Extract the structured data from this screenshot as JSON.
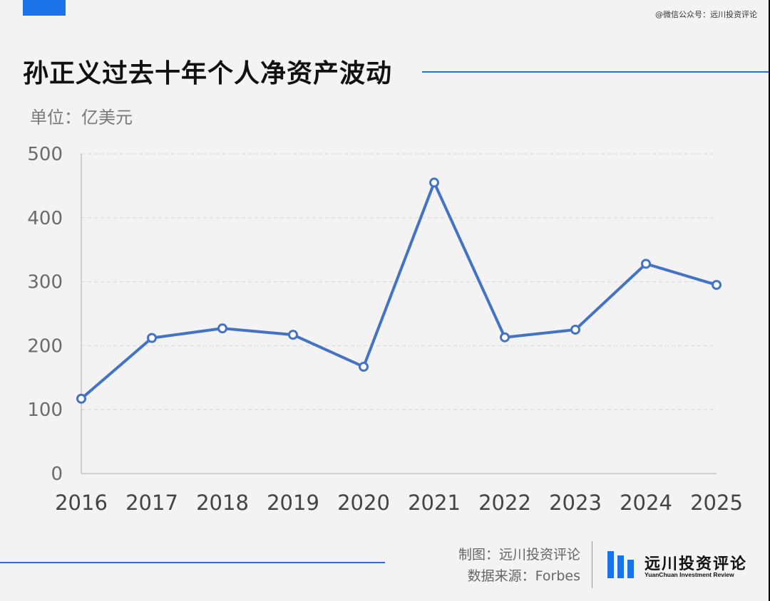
{
  "watermark": "@微信公众号：远川投资评论",
  "title": "孙正义过去十年个人净资产波动",
  "unit_label": "单位：亿美元",
  "colors": {
    "accent": "#1a73e8",
    "series": "#4472c4"
  },
  "chart_data": {
    "type": "line",
    "categories": [
      "2016",
      "2017",
      "2018",
      "2019",
      "2020",
      "2021",
      "2022",
      "2023",
      "2024",
      "2025"
    ],
    "series": [
      {
        "values": [
          117,
          212,
          227,
          217,
          167,
          455,
          213,
          225,
          328,
          295
        ]
      }
    ],
    "ylim": [
      0,
      500
    ],
    "yticks": [
      0,
      100,
      200,
      300,
      400,
      500
    ],
    "grid": true,
    "ylabel": "单位：亿美元"
  },
  "footer": {
    "maker": "制图：远川投资评论",
    "source": "数据来源：Forbes"
  },
  "logo": {
    "name": "远川投资评论",
    "english": "YuanChuan Investment Review"
  }
}
